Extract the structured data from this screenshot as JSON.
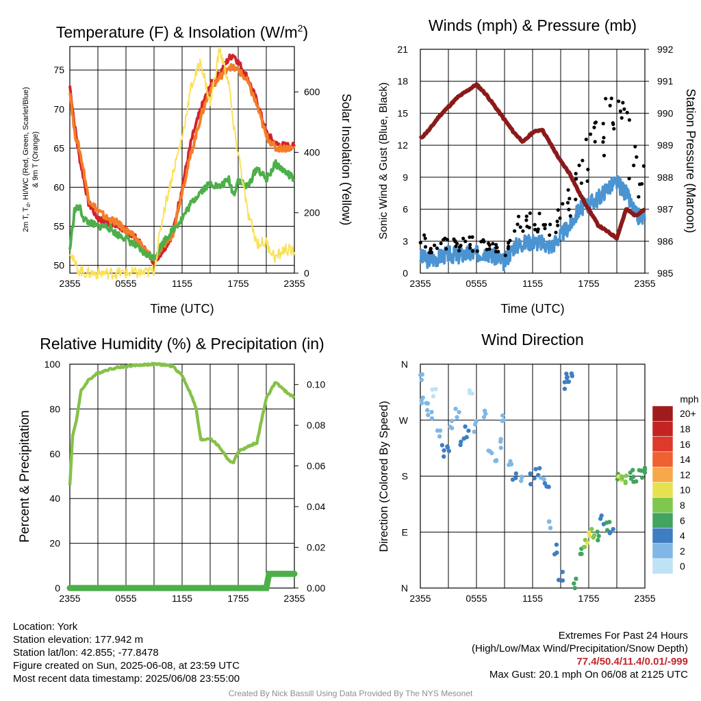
{
  "chart_data": [
    {
      "type": "line",
      "title_main": "Temperature (F) & Insolation (W/m",
      "title_sup": "2",
      "title_end": ")",
      "xlabel": "Time (UTC)",
      "x_ticks": [
        "2355",
        "0555",
        "1155",
        "1755",
        "2355"
      ],
      "ylabel_line1": "2m T, T",
      "ylabel_sub": "d",
      "ylabel_line1_end": ", HI/WC (Red, Green, Scarlet/Blue)",
      "ylabel_line2": "& 9m T (Orange)",
      "ylim": [
        49,
        78
      ],
      "y_ticks": [
        "50",
        "55",
        "60",
        "65",
        "70",
        "75"
      ],
      "y2label": "Solar Insolation (Yellow)",
      "y2lim": [
        0,
        750
      ],
      "y2_ticks": [
        "0",
        "200",
        "400",
        "600"
      ],
      "x_hours": [
        0,
        0.5,
        1,
        1.5,
        2,
        3,
        4,
        5,
        6,
        7,
        8,
        9,
        10,
        11,
        12,
        13,
        14,
        15,
        16,
        17,
        17.5,
        18,
        19,
        20,
        21,
        22,
        23,
        24
      ],
      "series": [
        {
          "color": "#d2232a",
          "values": [
            73,
            68,
            64,
            61,
            58,
            56,
            55.5,
            55,
            54.5,
            53.5,
            52,
            50.5,
            52,
            54,
            60,
            66,
            70,
            73,
            74.5,
            76.5,
            77,
            76,
            74,
            71,
            67,
            65.5,
            65.3,
            65.2
          ]
        },
        {
          "color": "#f47e28",
          "values": [
            72.5,
            67,
            65,
            62,
            58.5,
            57,
            56,
            55.5,
            54.5,
            53.5,
            52,
            50.8,
            52.5,
            54,
            59.5,
            64.5,
            69,
            72.5,
            74,
            75.5,
            75.2,
            75,
            73.5,
            70.5,
            66.5,
            65,
            65,
            65
          ]
        },
        {
          "color": "#4daf4a",
          "values": [
            52,
            57,
            57.5,
            56,
            55.5,
            55,
            55,
            54,
            53.5,
            52.5,
            51.5,
            51,
            53,
            54.5,
            56,
            58,
            59.5,
            60.5,
            60,
            61,
            59,
            61,
            60,
            62.5,
            61,
            63,
            62,
            61
          ]
        },
        {
          "color": "#fbe159",
          "y2": true,
          "values": [
            80,
            30,
            10,
            3,
            0,
            0,
            0,
            0,
            0,
            0,
            0,
            10,
            200,
            330,
            450,
            620,
            700,
            560,
            740,
            630,
            480,
            400,
            200,
            100,
            100,
            50,
            80,
            70
          ]
        }
      ]
    },
    {
      "type": "scatter",
      "title": "Winds (mph) & Pressure (mb)",
      "xlabel": "Time (UTC)",
      "x_ticks": [
        "2355",
        "0555",
        "1155",
        "1755",
        "2355"
      ],
      "ylabel": "Sonic Wind & Gust (Blue, Black)",
      "ylim": [
        0,
        21
      ],
      "y_ticks": [
        "0",
        "3",
        "6",
        "9",
        "12",
        "15",
        "18",
        "21"
      ],
      "y2label": "Station Pressure (Maroon)",
      "y2lim": [
        985,
        992
      ],
      "y2_ticks": [
        "985",
        "986",
        "987",
        "988",
        "989",
        "990",
        "991",
        "992"
      ],
      "x_hours": [
        0,
        1,
        2,
        3,
        4,
        5,
        6,
        7,
        8,
        9,
        10,
        11,
        12,
        13,
        14,
        15,
        16,
        17,
        18,
        19,
        20,
        21,
        22,
        23,
        24
      ],
      "wind_mean": [
        1.5,
        1.2,
        1.5,
        1.8,
        1.6,
        1.8,
        1.8,
        2.0,
        1.5,
        1.0,
        2.5,
        2.8,
        3.0,
        2.8,
        2.5,
        3.5,
        4.5,
        6.0,
        6.5,
        7.0,
        8.0,
        8.5,
        7.5,
        5.5,
        5.0
      ],
      "wind_gust": [
        3.5,
        2.0,
        2.5,
        2.8,
        2.5,
        3.0,
        2.5,
        2.8,
        2.2,
        1.5,
        4.5,
        4.5,
        5.0,
        4.5,
        4.0,
        5.5,
        7.0,
        9.0,
        11.0,
        13.0,
        14.0,
        14.5,
        13.0,
        9.0,
        9.5
      ],
      "pressure": [
        989.2,
        989.5,
        989.9,
        990.2,
        990.5,
        990.7,
        990.9,
        990.6,
        990.2,
        989.8,
        989.4,
        989.1,
        989.4,
        989.5,
        989.0,
        988.5,
        988.1,
        987.5,
        987.0,
        986.5,
        986.3,
        986.1,
        987.0,
        986.8,
        987.0
      ]
    },
    {
      "type": "line",
      "title": "Relative Humidity (%) & Precipitation (in)",
      "x_ticks": [
        "2355",
        "0555",
        "1155",
        "1755",
        "2355"
      ],
      "ylabel": "Percent & Precipitation",
      "ylim": [
        0,
        100
      ],
      "y_ticks": [
        "0",
        "20",
        "40",
        "60",
        "80",
        "100"
      ],
      "y2lim": [
        0,
        0.11
      ],
      "y2_ticks": [
        "0.00",
        "0.02",
        "0.04",
        "0.06",
        "0.08",
        "0.10"
      ],
      "x_hours": [
        0,
        0.3,
        0.7,
        1.2,
        2,
        3,
        4,
        5,
        6,
        7,
        8,
        9,
        10,
        11,
        12,
        13,
        13.5,
        14,
        15,
        16,
        17,
        17.5,
        18,
        19,
        20,
        21,
        22,
        23,
        24
      ],
      "rh": [
        46,
        68,
        75,
        88,
        93,
        96,
        97.5,
        98.5,
        99,
        99.5,
        99.8,
        100,
        99.8,
        99,
        95,
        86,
        80,
        66,
        67,
        63,
        57,
        56,
        61,
        63,
        65,
        85,
        92,
        88,
        85
      ],
      "precip_x": [
        0,
        21,
        21.3,
        24
      ],
      "precip": [
        0,
        0,
        0.007,
        0.007
      ]
    },
    {
      "type": "scatter",
      "title": "Wind Direction",
      "x_ticks": [
        "2355",
        "0555",
        "1155",
        "1755",
        "2355"
      ],
      "ylabel": "Direction (Colored By Speed)",
      "ylim": [
        0,
        360
      ],
      "y_ticks": [
        "N",
        "E",
        "S",
        "W",
        "N"
      ],
      "legend": {
        "title": "mph",
        "labels": [
          "20+",
          "18",
          "16",
          "14",
          "12",
          "10",
          "8",
          "6",
          "4",
          "2",
          "0"
        ],
        "colors": [
          "#a01c1c",
          "#c42323",
          "#de3a2c",
          "#ee6130",
          "#f6a84a",
          "#e6e14e",
          "#7ec850",
          "#41a460",
          "#3e7ec0",
          "#7fb8e6",
          "#bfe2f5"
        ]
      },
      "x_hours": [
        0.1,
        0.3,
        0.6,
        1.0,
        1.5,
        2.0,
        2.5,
        3.0,
        3.3,
        4.0,
        4.5,
        5.0,
        5.3,
        6.0,
        7.0,
        7.5,
        8.0,
        8.5,
        9.0,
        9.5,
        10.0,
        11.0,
        12.0,
        12.5,
        13.0,
        13.5,
        14.0,
        14.5,
        15.0,
        15.5,
        15.8,
        16.0,
        16.5,
        17.0,
        17.5,
        18.0,
        18.5,
        19.0,
        19.5,
        20.0,
        20.5,
        21.0,
        21.3,
        21.5,
        22.0,
        22.5,
        23.0,
        23.5,
        24.0
      ],
      "dirs": [
        340,
        300,
        290,
        280,
        310,
        250,
        220,
        230,
        260,
        280,
        240,
        250,
        320,
        260,
        280,
        220,
        200,
        230,
        270,
        200,
        180,
        180,
        175,
        190,
        180,
        165,
        100,
        60,
        20,
        330,
        335,
        340,
        5,
        60,
        70,
        80,
        90,
        85,
        110,
        100,
        95,
        175,
        180,
        180,
        175,
        185,
        175,
        180,
        185
      ],
      "speeds": [
        2,
        1,
        1,
        2,
        0,
        2,
        3,
        4,
        1,
        2,
        3,
        3,
        0,
        2,
        1,
        1,
        2,
        2,
        1,
        1,
        3,
        2,
        3,
        4,
        2,
        4,
        2,
        3,
        4,
        3,
        4,
        4,
        6,
        6,
        7,
        9,
        7,
        6,
        4,
        5,
        4,
        6,
        9,
        8,
        7,
        6,
        6,
        6,
        6
      ]
    }
  ],
  "info_left": [
    "Location: York",
    "Station elevation: 177.942 m",
    "Station lat/lon: 42.855; -77.8478",
    "Figure created on Sun, 2025-06-08, at 23:59 UTC",
    "Most recent data timestamp: 2025/06/08 23:55:00"
  ],
  "info_right": {
    "line1": "Extremes For Past 24 Hours",
    "line2": "(High/Low/Max Wind/Precipitation/Snow Depth)",
    "extremes": "77.4/50.4/11.4/0.01/-999",
    "gust": "Max Gust: 20.1 mph On 06/08 at 2125 UTC"
  },
  "credit": "Created By Nick Bassill Using Data Provided By The NYS Mesonet"
}
